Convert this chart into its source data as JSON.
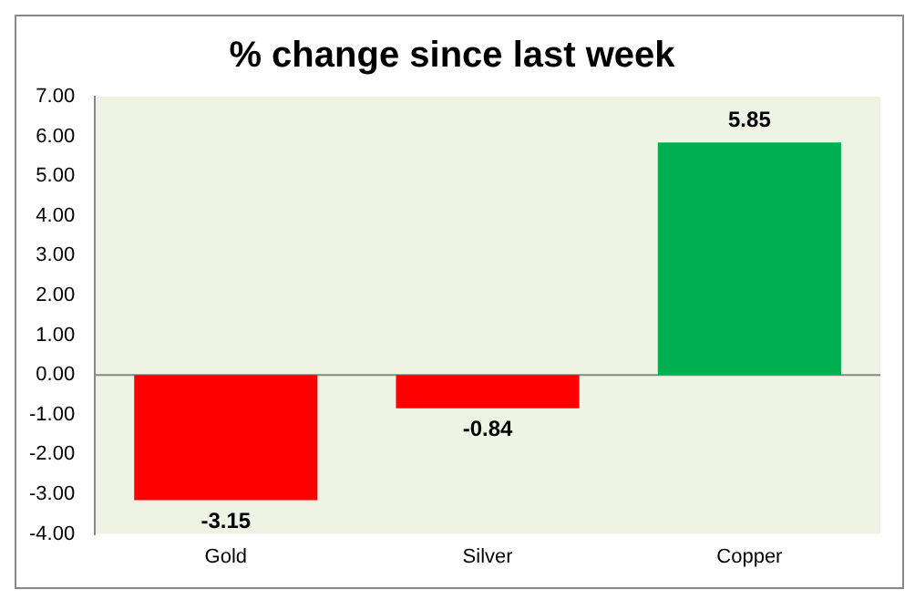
{
  "chart_data": {
    "type": "bar",
    "title": "% change since last week",
    "categories": [
      "Gold",
      "Silver",
      "Copper"
    ],
    "values": [
      -3.15,
      -0.84,
      5.85
    ],
    "colors": [
      "#ff0000",
      "#ff0000",
      "#00b050"
    ],
    "ylim": [
      -4,
      7
    ],
    "yticks": [
      {
        "value": -4,
        "label": "-4.00"
      },
      {
        "value": -3,
        "label": "-3.00"
      },
      {
        "value": -2,
        "label": "-2.00"
      },
      {
        "value": -1,
        "label": "-1.00"
      },
      {
        "value": 0,
        "label": "0.00"
      },
      {
        "value": 1,
        "label": "1.00"
      },
      {
        "value": 2,
        "label": "2.00"
      },
      {
        "value": 3,
        "label": "3.00"
      },
      {
        "value": 4,
        "label": "4.00"
      },
      {
        "value": 5,
        "label": "5.00"
      },
      {
        "value": 6,
        "label": "6.00"
      },
      {
        "value": 7,
        "label": "7.00"
      }
    ],
    "ref_lines": [
      {
        "axis": "y",
        "value": 0,
        "color": "#888888"
      }
    ],
    "data_labels": true,
    "grid": false,
    "legend": false
  }
}
